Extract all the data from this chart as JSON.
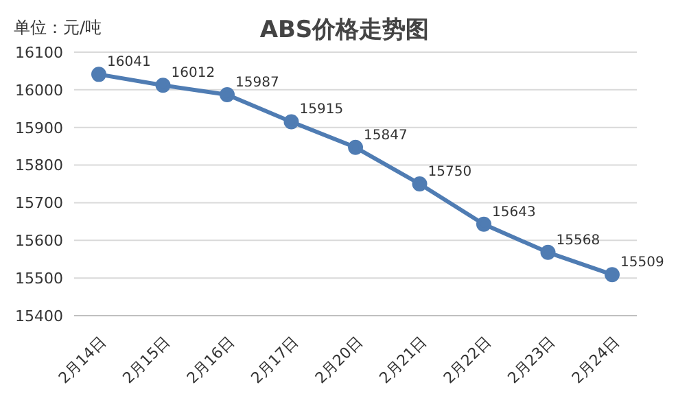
{
  "chart_data": {
    "type": "line",
    "title": "ABS价格走势图",
    "ylabel": "单位：元/吨",
    "categories": [
      "2月14日",
      "2月15日",
      "2月16日",
      "2月17日",
      "2月20日",
      "2月21日",
      "2月22日",
      "2月23日",
      "2月24日"
    ],
    "series": [
      {
        "color": "#4f7cb3",
        "values": [
          16041,
          16012,
          15987,
          15915,
          15847,
          15750,
          15643,
          15568,
          15509
        ]
      }
    ],
    "ylim": [
      15400,
      16100
    ],
    "yticks": [
      15400,
      15500,
      15600,
      15700,
      15800,
      15900,
      16000,
      16100
    ],
    "grid": "y",
    "marker": "circle",
    "line_style": "solid",
    "data_labels": true
  }
}
